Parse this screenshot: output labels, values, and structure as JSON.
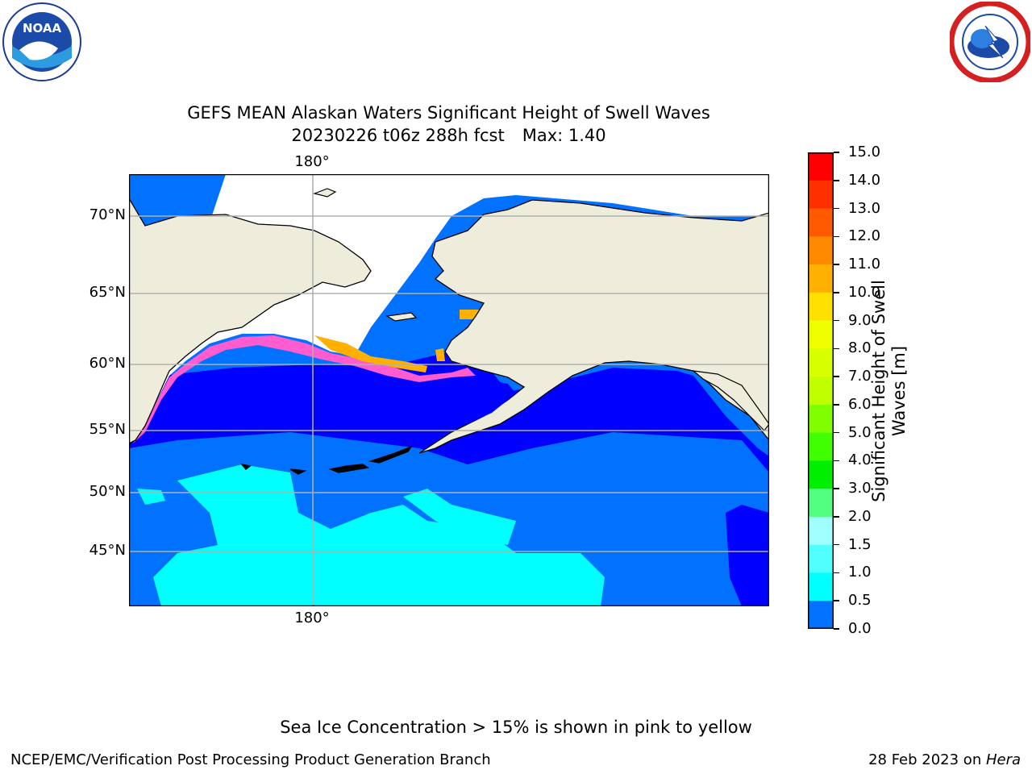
{
  "title_line1": "GEFS MEAN Alaskan Waters Significant Height of Swell Waves",
  "title_line2": "20230226 t06z 288h fcst",
  "max_label": "Max: 1.40",
  "logos": {
    "left": {
      "name": "noaa-logo",
      "text": "NOAA"
    },
    "right": {
      "name": "national-weather-service-logo"
    }
  },
  "map": {
    "lat_labels": [
      "70°N",
      "65°N",
      "60°N",
      "55°N",
      "50°N",
      "45°N"
    ],
    "lon_label_top": "180°",
    "lon_label_bottom": "180°",
    "colors": {
      "land": "#eeeddb",
      "ice_pink": "#ff5cd0",
      "ice_orange": "#ffb000",
      "swell_0_0_5": "#0000ff",
      "swell_0_5_1": "#0072ff",
      "swell_1_1_5": "#00ffff",
      "grid": "#b0b0b0"
    }
  },
  "colorbar": {
    "label_line1": "Significant Height of Swell",
    "label_line2": "Waves [m]",
    "ticks": [
      "15.0",
      "14.0",
      "13.0",
      "12.0",
      "11.0",
      "10.0",
      "9.0",
      "8.0",
      "7.0",
      "6.0",
      "5.0",
      "4.0",
      "3.0",
      "2.0",
      "1.5",
      "1.0",
      "0.5",
      "0.0"
    ],
    "colors": [
      "#ff0000",
      "#ff3000",
      "#ff5a00",
      "#ff8a00",
      "#ffb000",
      "#ffe000",
      "#f0ff00",
      "#d8ff00",
      "#c0ff00",
      "#80ff00",
      "#40ff00",
      "#00ee00",
      "#52ff80",
      "#a0ffff",
      "#50ffff",
      "#00ffff",
      "#0072ff",
      "#0000ff"
    ]
  },
  "note": "Sea Ice Concentration > 15% is shown in pink to yellow",
  "footer_left": "NCEP/EMC/Verification Post Processing Product Generation Branch",
  "footer_right_date": "28 Feb 2023 on ",
  "footer_right_machine": "Hera"
}
